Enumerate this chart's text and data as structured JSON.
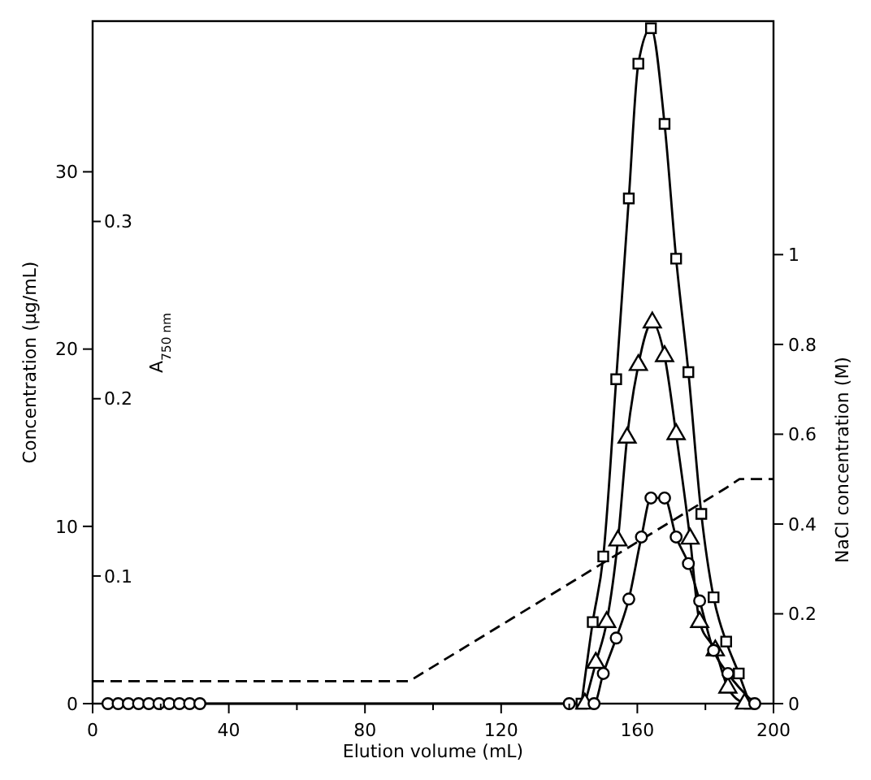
{
  "chart_data": {
    "type": "line",
    "xlabel": "Elution volume (mL)",
    "ylabel": "Concentration (µg/mL)",
    "y2label": "NaCl concentration (M)",
    "y3label": "A$_{750 nm}$",
    "xlim": [
      0,
      200
    ],
    "xticks": [
      0,
      {
        "value": 20,
        "label": null
      },
      40,
      {
        "value": 60,
        "label": null
      },
      80,
      {
        "value": 100,
        "label": null
      },
      120,
      {
        "value": 140,
        "label": null
      },
      160,
      {
        "value": 180,
        "label": null
      },
      200
    ],
    "ylim": [
      0,
      38.5
    ],
    "yticks": [
      0,
      10,
      20,
      30
    ],
    "y2lim": [
      0,
      1.52
    ],
    "y2ticks": [
      0,
      0.2,
      0.4,
      0.6,
      0.8,
      1
    ],
    "y3lim": [
      0.028,
      0.413
    ],
    "y3ticks": [
      0.1,
      0.2,
      0.3
    ],
    "series": [
      {
        "color": "#000000",
        "marker": "square",
        "x": [
          143.6,
          146.9,
          150,
          153.8,
          157.5,
          160.3,
          164,
          168,
          171.4,
          175,
          178.8,
          182.4,
          186.1,
          189.8,
          193
        ],
        "values": [
          0,
          4.6,
          8.3,
          18.3,
          28.5,
          36.1,
          38.1,
          32.7,
          25.1,
          18.7,
          10.7,
          6,
          3.5,
          1.7,
          0
        ]
      },
      {
        "color": "#000000",
        "marker": "triangle",
        "x": [
          144.6,
          147.8,
          151,
          154.3,
          157,
          160.3,
          164.4,
          168,
          171.4,
          175.5,
          178.3,
          182.9,
          186.6,
          191.5
        ],
        "values": [
          0,
          2.3,
          4.6,
          9.2,
          15,
          19.1,
          21.5,
          19.6,
          15.2,
          9.3,
          4.6,
          3,
          0.9,
          0
        ]
      },
      {
        "color": "#000000",
        "marker": "circle",
        "x": [
          4.5,
          7.5,
          10.5,
          13.5,
          16.5,
          19.5,
          22.5,
          25.5,
          28.5,
          31.5,
          140,
          147.3,
          150,
          153.8,
          157.5,
          161.2,
          164,
          168,
          171.4,
          175,
          178.3,
          182.4,
          186.6,
          194.5
        ],
        "values": [
          0,
          0,
          0,
          0,
          0,
          0,
          0,
          0,
          0,
          0,
          0,
          0,
          1.7,
          3.7,
          5.9,
          9.4,
          11.6,
          11.6,
          9.4,
          7.9,
          5.8,
          3,
          1.7,
          0
        ]
      },
      {
        "color": "#000000",
        "marker": "none",
        "line_style": "dashed",
        "axis": "y2",
        "x": [
          0,
          93,
          186,
          190,
          200
        ],
        "values": [
          0.05,
          0.05,
          0.48,
          0.5,
          0.5
        ]
      }
    ]
  }
}
